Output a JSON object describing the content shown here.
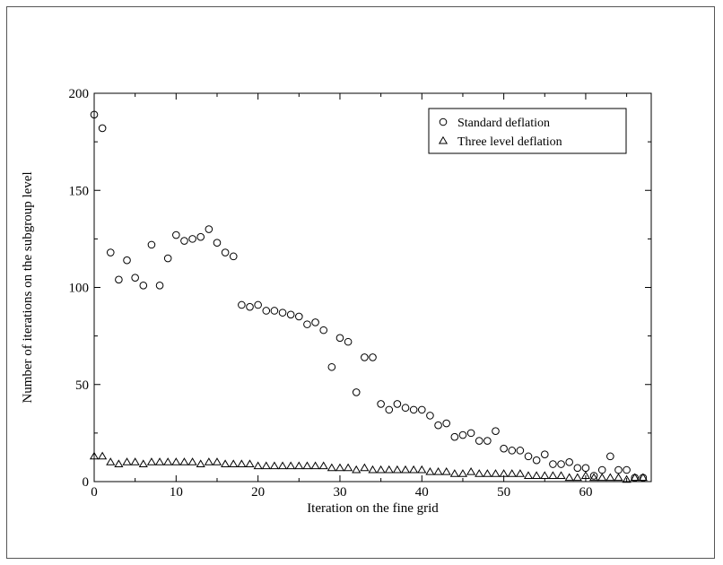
{
  "chart_data": {
    "type": "scatter",
    "xlabel": "Iteration on the fine grid",
    "ylabel": "Number of iterations on the subgroup level",
    "xlim": [
      0,
      68
    ],
    "ylim": [
      0,
      200
    ],
    "xticks": [
      0,
      10,
      20,
      30,
      40,
      50,
      60
    ],
    "yticks": [
      0,
      50,
      100,
      150,
      200
    ],
    "xtick_labels": [
      "0",
      "10",
      "20",
      "30",
      "40",
      "50",
      "60"
    ],
    "ytick_labels": [
      "0",
      "50",
      "100",
      "150",
      "200"
    ],
    "grid": false,
    "legend_position": "top-right",
    "series": [
      {
        "name": "Standard deflation",
        "marker": "circle",
        "x": [
          0,
          1,
          2,
          3,
          4,
          5,
          6,
          7,
          8,
          9,
          10,
          11,
          12,
          13,
          14,
          15,
          16,
          17,
          18,
          19,
          20,
          21,
          22,
          23,
          24,
          25,
          26,
          27,
          28,
          29,
          30,
          31,
          32,
          33,
          34,
          35,
          36,
          37,
          38,
          39,
          40,
          41,
          42,
          43,
          44,
          45,
          46,
          47,
          48,
          49,
          50,
          51,
          52,
          53,
          54,
          55,
          56,
          57,
          58,
          59,
          60,
          61,
          62,
          63,
          64,
          65,
          66,
          67
        ],
        "y": [
          189,
          182,
          118,
          104,
          114,
          105,
          101,
          122,
          101,
          115,
          127,
          124,
          125,
          126,
          130,
          123,
          118,
          116,
          91,
          90,
          91,
          88,
          88,
          87,
          86,
          85,
          81,
          82,
          78,
          59,
          74,
          72,
          46,
          64,
          64,
          40,
          37,
          40,
          38,
          37,
          37,
          34,
          29,
          30,
          23,
          24,
          25,
          21,
          21,
          26,
          17,
          16,
          16,
          13,
          11,
          14,
          9,
          9,
          10,
          7,
          7,
          3,
          6,
          13,
          6,
          6,
          2,
          2
        ]
      },
      {
        "name": "Three level deflation",
        "marker": "triangle",
        "x": [
          0,
          1,
          2,
          3,
          4,
          5,
          6,
          7,
          8,
          9,
          10,
          11,
          12,
          13,
          14,
          15,
          16,
          17,
          18,
          19,
          20,
          21,
          22,
          23,
          24,
          25,
          26,
          27,
          28,
          29,
          30,
          31,
          32,
          33,
          34,
          35,
          36,
          37,
          38,
          39,
          40,
          41,
          42,
          43,
          44,
          45,
          46,
          47,
          48,
          49,
          50,
          51,
          52,
          53,
          54,
          55,
          56,
          57,
          58,
          59,
          60,
          61,
          62,
          63,
          64,
          65,
          66,
          67
        ],
        "y": [
          13,
          13,
          10,
          9,
          10,
          10,
          9,
          10,
          10,
          10,
          10,
          10,
          10,
          9,
          10,
          10,
          9,
          9,
          9,
          9,
          8,
          8,
          8,
          8,
          8,
          8,
          8,
          8,
          8,
          7,
          7,
          7,
          6,
          7,
          6,
          6,
          6,
          6,
          6,
          6,
          6,
          5,
          5,
          5,
          4,
          4,
          5,
          4,
          4,
          4,
          4,
          4,
          4,
          3,
          3,
          3,
          3,
          3,
          2,
          2,
          3,
          2,
          2,
          2,
          2,
          1,
          2,
          2
        ]
      }
    ]
  }
}
